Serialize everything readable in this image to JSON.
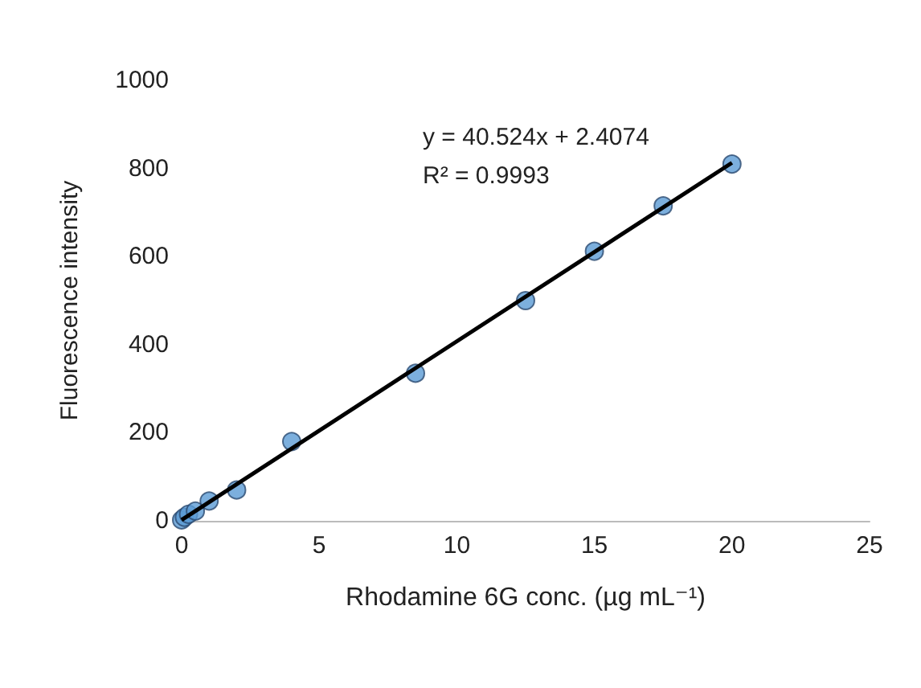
{
  "chart_data": {
    "type": "scatter",
    "xlabel": "Rhodamine 6G conc. (µg mL⁻¹)",
    "ylabel": "Fluorescence intensity",
    "x": [
      0,
      0.1,
      0.25,
      0.5,
      1,
      2,
      4,
      8.5,
      12.5,
      15,
      17.5,
      20
    ],
    "series": [
      {
        "color": "#5b9bd5",
        "values": [
          2,
          8,
          15,
          22,
          45,
          70,
          180,
          335,
          500,
          612,
          715,
          810
        ]
      },
      {
        "type": "line",
        "color": "#000000",
        "x": [
          0,
          20
        ],
        "values": [
          2,
          813
        ],
        "marker": "none"
      }
    ],
    "annotations": [
      "y = 40.524x + 2.4074",
      "R² = 0.9993"
    ],
    "xlim": [
      0,
      25
    ],
    "xticks": [
      0,
      5,
      10,
      15,
      20,
      25
    ],
    "ylim": [
      0,
      1000
    ],
    "yticks": [
      0,
      200,
      400,
      600,
      800,
      1000
    ],
    "grid": false,
    "marker": "circle"
  }
}
